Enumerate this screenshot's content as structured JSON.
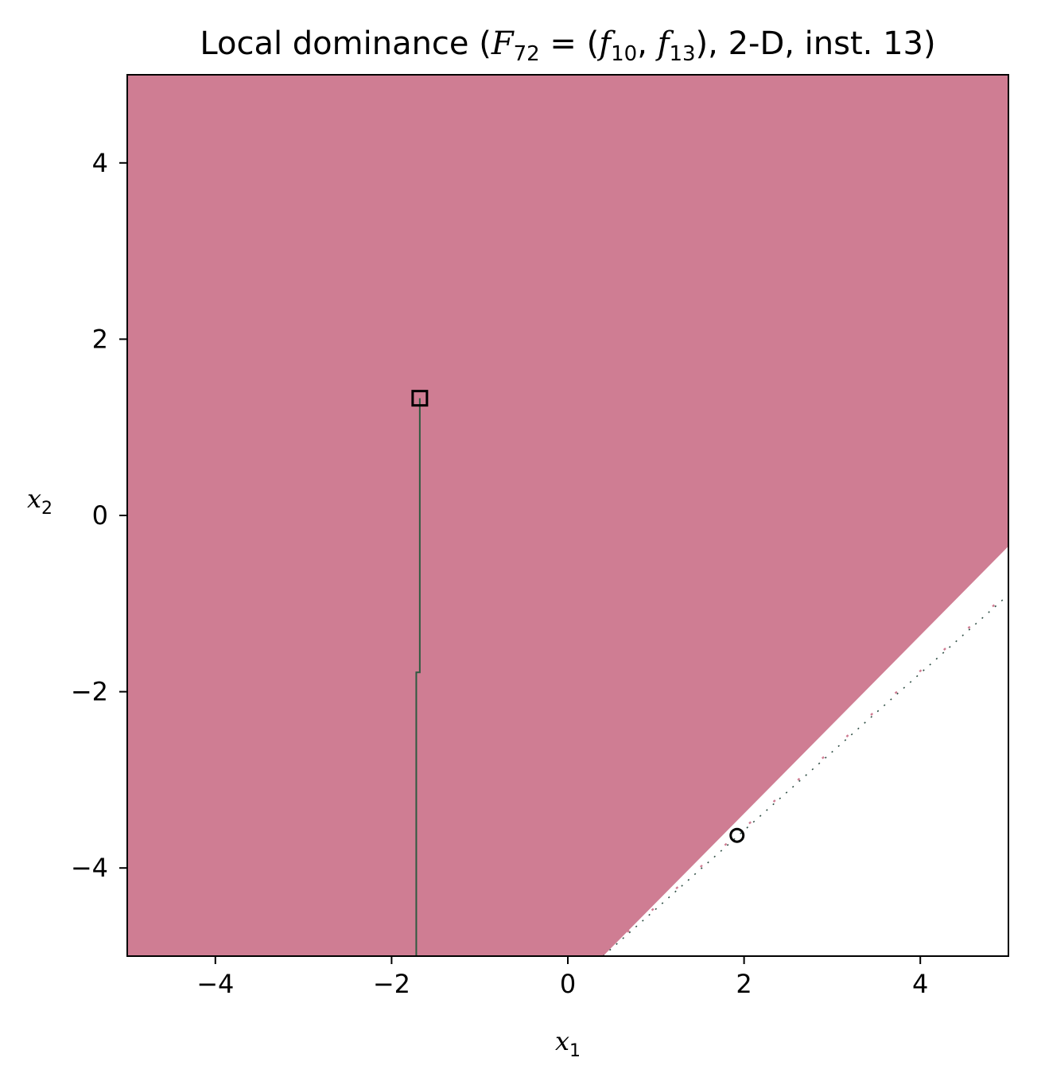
{
  "chart_data": {
    "type": "heatmap",
    "title": {
      "prefix": "Local dominance (",
      "F": "F",
      "F_sub": "72",
      "eq": " = (",
      "f1": "f",
      "f1_sub": "10",
      "comma": ", ",
      "f2": "f",
      "f2_sub": "13",
      "suffix": "), 2-D, inst. 13)"
    },
    "xlabel": {
      "base": "x",
      "sub": "1"
    },
    "ylabel": {
      "base": "x",
      "sub": "2"
    },
    "xlim": [
      -5,
      5
    ],
    "ylim": [
      -5,
      5
    ],
    "xticks": [
      -4,
      -2,
      0,
      2,
      4
    ],
    "yticks": [
      -4,
      -2,
      0,
      2,
      4
    ],
    "xtick_labels": [
      "−4",
      "−2",
      "0",
      "2",
      "4"
    ],
    "ytick_labels": [
      "−4",
      "−2",
      "0",
      "2",
      "4"
    ],
    "grid": false,
    "region": {
      "color": "#cf7d93",
      "polygon": [
        [
          -5,
          -5
        ],
        [
          0.4,
          -5
        ],
        [
          5,
          -0.35
        ],
        [
          5,
          5
        ],
        [
          -5,
          5
        ]
      ]
    },
    "white_band_boundary": [
      [
        0.4,
        -5
      ],
      [
        5,
        -0.35
      ]
    ],
    "dotted_line": {
      "color": "#2f4f45",
      "accent_color": "#cf7d93",
      "from": [
        0.4,
        -5
      ],
      "to": [
        5,
        -0.9
      ]
    },
    "path": {
      "color": "#2f5a40",
      "points": [
        [
          -1.68,
          1.33
        ],
        [
          -1.68,
          -1.78
        ],
        [
          -1.72,
          -1.78
        ],
        [
          -1.72,
          -5
        ],
        [
          0.4,
          -5
        ]
      ]
    },
    "markers": [
      {
        "shape": "square",
        "x": -1.68,
        "y": 1.33
      },
      {
        "shape": "circle",
        "x": 1.92,
        "y": -3.63
      }
    ]
  }
}
